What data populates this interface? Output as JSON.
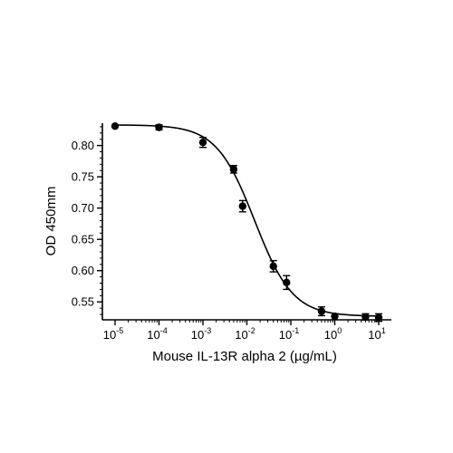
{
  "chart_data": {
    "type": "scatter",
    "title": "",
    "xlabel": "Mouse IL-13R alpha 2 (µg/mL)",
    "ylabel": "OD 450mm",
    "x_scale": "log10",
    "xlim": [
      1e-05,
      10
    ],
    "ylim": [
      0.525,
      0.84
    ],
    "x_ticks": [
      {
        "value": 1e-05,
        "base": "10",
        "exp": "-5"
      },
      {
        "value": 0.0001,
        "base": "10",
        "exp": "-4"
      },
      {
        "value": 0.001,
        "base": "10",
        "exp": "-3"
      },
      {
        "value": 0.01,
        "base": "10",
        "exp": "-2"
      },
      {
        "value": 0.1,
        "base": "10",
        "exp": "-1"
      },
      {
        "value": 1,
        "base": "10",
        "exp": "0"
      },
      {
        "value": 10,
        "base": "10",
        "exp": "1"
      }
    ],
    "y_ticks": [
      {
        "value": 0.55,
        "label": "0.55"
      },
      {
        "value": 0.6,
        "label": "0.60"
      },
      {
        "value": 0.65,
        "label": "0.65"
      },
      {
        "value": 0.7,
        "label": "0.70"
      },
      {
        "value": 0.75,
        "label": "0.75"
      },
      {
        "value": 0.8,
        "label": "0.80"
      }
    ],
    "grid": false,
    "legend": "none",
    "series": [
      {
        "points": [
          {
            "x": 1e-05,
            "y": 0.831,
            "err": 0.0
          },
          {
            "x": 0.0001,
            "y": 0.829,
            "err": 0.004
          },
          {
            "x": 0.001,
            "y": 0.805,
            "err": 0.008
          },
          {
            "x": 0.005,
            "y": 0.762,
            "err": 0.006
          },
          {
            "x": 0.008,
            "y": 0.703,
            "err": 0.009
          },
          {
            "x": 0.04,
            "y": 0.607,
            "err": 0.009
          },
          {
            "x": 0.08,
            "y": 0.581,
            "err": 0.011
          },
          {
            "x": 0.5,
            "y": 0.535,
            "err": 0.007
          },
          {
            "x": 1,
            "y": 0.527,
            "err": 0.0
          },
          {
            "x": 5,
            "y": 0.526,
            "err": 0.005
          },
          {
            "x": 10,
            "y": 0.525,
            "err": 0.006
          }
        ],
        "fit": {
          "model": "4PL",
          "top": 0.833,
          "bottom": 0.527,
          "ec50": 0.015,
          "hill": 1.0
        }
      }
    ],
    "colors": {
      "marker": "#000000",
      "line": "#000000",
      "axis": "#000000"
    }
  }
}
